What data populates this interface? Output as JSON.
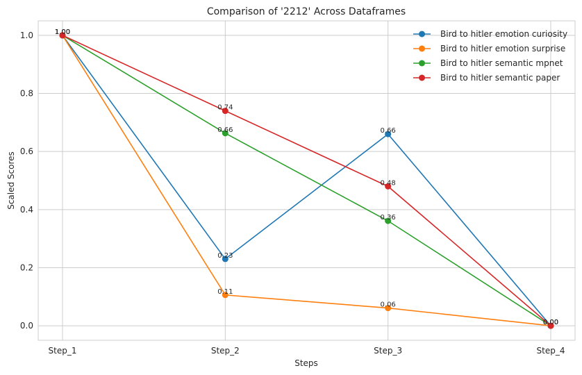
{
  "chart_data": {
    "type": "line",
    "title": "Comparison of '2212' Across Dataframes",
    "xlabel": "Steps",
    "ylabel": "Scaled Scores",
    "categories": [
      "Step_1",
      "Step_2",
      "Step_3",
      "Step_4"
    ],
    "ylim": [
      -0.05,
      1.05
    ],
    "yticks": [
      0.0,
      0.2,
      0.4,
      0.6,
      0.8,
      1.0
    ],
    "ytick_labels": [
      "0.0",
      "0.2",
      "0.4",
      "0.6",
      "0.8",
      "1.0"
    ],
    "grid": true,
    "legend_position": "top-right",
    "series": [
      {
        "name": "Bird to hitler emotion curiosity",
        "color": "#1f77b4",
        "values": [
          1.0,
          0.23,
          0.66,
          0.0
        ],
        "labels": [
          "1.00",
          "0.23",
          "0.66",
          "0.00"
        ]
      },
      {
        "name": "Bird to hitler emotion surprise",
        "color": "#ff7f0e",
        "values": [
          1.0,
          0.106,
          0.061,
          0.0
        ],
        "labels": [
          "1.00",
          "0.11",
          "0.06",
          "0.00"
        ]
      },
      {
        "name": "Bird to hitler semantic mpnet",
        "color": "#2ca02c",
        "values": [
          1.0,
          0.663,
          0.361,
          0.0
        ],
        "labels": [
          "1.00",
          "0.66",
          "0.36",
          "0.00"
        ]
      },
      {
        "name": "Bird to hitler semantic paper",
        "color": "#d62728",
        "values": [
          1.0,
          0.74,
          0.48,
          0.0
        ],
        "labels": [
          "1.00",
          "0.74",
          "0.48",
          "0.00"
        ]
      }
    ]
  }
}
